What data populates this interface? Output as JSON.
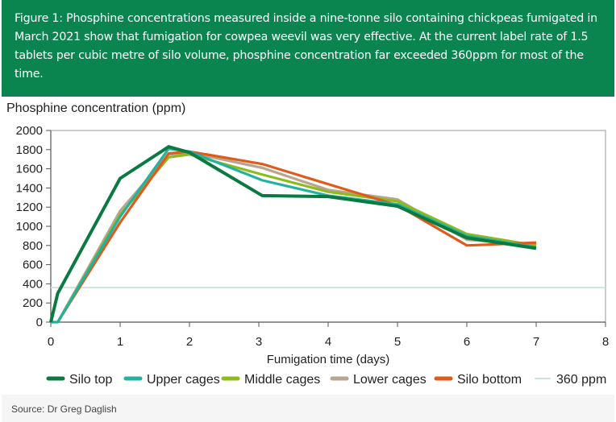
{
  "header": {
    "caption": "Figure 1: Phosphine concentrations measured inside a nine-tonne silo containing chickpeas fumigated in March 2021 show that fumigation for cowpea weevil was very effective. At the current label rate of 1.5 tablets per cubic metre of silo volume, phosphine concentration far exceeded 360ppm for most of the time."
  },
  "source": "Source: Dr Greg Daglish",
  "chart_data": {
    "type": "line",
    "title": "",
    "ylabel": "Phosphine concentration (ppm)",
    "xlabel": "Fumigation time (days)",
    "xlim": [
      0,
      8
    ],
    "ylim": [
      0,
      2000
    ],
    "xticks": [
      "0",
      "1",
      "2",
      "3",
      "4",
      "5",
      "6",
      "7",
      "8"
    ],
    "yticks": [
      "0",
      "200",
      "400",
      "600",
      "800",
      "1000",
      "1200",
      "1400",
      "1600",
      "1800",
      "2000"
    ],
    "grid": false,
    "legend_position": "bottom",
    "series": [
      {
        "name": "Silo top",
        "color": "#0b7a42",
        "x": [
          0,
          0.1,
          1,
          1.7,
          2,
          3.05,
          4,
          5,
          6,
          7
        ],
        "y": [
          0,
          300,
          1500,
          1830,
          1770,
          1320,
          1310,
          1210,
          880,
          770
        ]
      },
      {
        "name": "Upper cages",
        "color": "#22b2a2",
        "x": [
          0,
          0.1,
          1,
          1.7,
          2,
          3.05,
          4,
          5,
          6,
          7
        ],
        "y": [
          0,
          0,
          1100,
          1810,
          1780,
          1480,
          1320,
          1230,
          900,
          780
        ]
      },
      {
        "name": "Middle cages",
        "color": "#8dbb1c",
        "x": [
          0.1,
          1,
          1.7,
          2,
          3.05,
          4,
          5,
          6,
          7
        ],
        "y": [
          0,
          1120,
          1720,
          1750,
          1540,
          1360,
          1260,
          920,
          800
        ]
      },
      {
        "name": "Lower cages",
        "color": "#b7a58d",
        "x": [
          0.1,
          1,
          1.7,
          2,
          3.05,
          4,
          5,
          6,
          7
        ],
        "y": [
          0,
          1160,
          1750,
          1770,
          1610,
          1380,
          1280,
          860,
          810
        ]
      },
      {
        "name": "Silo bottom",
        "color": "#e05a1a",
        "x": [
          0.1,
          1,
          1.7,
          2,
          3.05,
          4,
          5,
          6,
          7
        ],
        "y": [
          0,
          1040,
          1760,
          1780,
          1650,
          1440,
          1220,
          800,
          830
        ]
      },
      {
        "name": "360 ppm",
        "color": "#cfe4d8",
        "x": [
          0,
          8
        ],
        "y": [
          360,
          360
        ]
      }
    ]
  }
}
